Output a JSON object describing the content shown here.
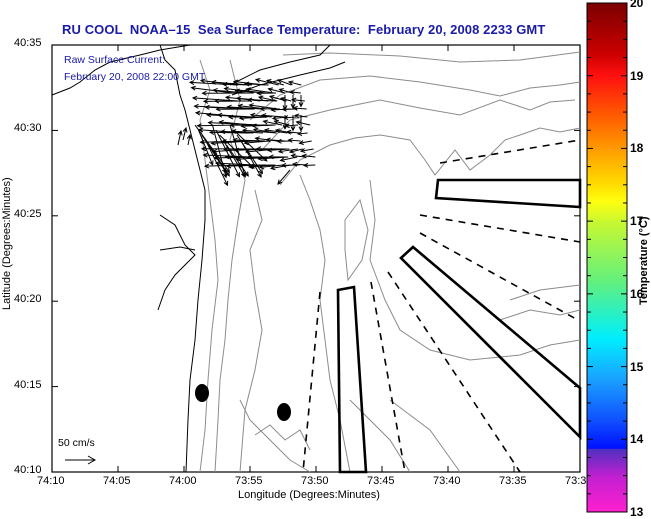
{
  "title": "RU COOL  NOAA–15  Sea Surface Temperature:  February 20, 2008 2233 GMT",
  "annotation": {
    "line1": "Raw Surface Current:",
    "line2": "February 20, 2008 22:00 GMT"
  },
  "scale_vector": {
    "label": "50 cm/s"
  },
  "x_axis": {
    "label": "Longitude (Degrees:Minutes)",
    "ticks": [
      "74:10",
      "74:05",
      "74:00",
      "73:55",
      "73:50",
      "73:45",
      "73:40",
      "73:35",
      "73:3"
    ]
  },
  "y_axis": {
    "label": "Latitude (Degrees:Minutes)",
    "ticks": [
      "40:35",
      "40:30",
      "40:25",
      "40:20",
      "40:15",
      "40:10"
    ]
  },
  "colorbar": {
    "label": "Temperature (°C)",
    "min": 13,
    "max": 20,
    "ticks": [
      "20",
      "19",
      "18",
      "17",
      "16",
      "15",
      "14",
      "13"
    ],
    "colors": {
      "20": "#7a0000",
      "19": "#ff1010",
      "18": "#ff9a00",
      "17.5": "#ffff10",
      "17": "#a8f040",
      "16": "#30f0b0",
      "15.5": "#00f0ff",
      "15": "#2090ff",
      "14.2": "#0010ff",
      "14": "#5030c0",
      "13": "#ff20d0"
    }
  },
  "markers": [
    {
      "name": "station-1",
      "lon": "74:00",
      "lat": "40:14.7"
    },
    {
      "name": "station-2",
      "lon": "73:57.5",
      "lat": "40:13.5"
    }
  ],
  "colors": {
    "title": "#1a1aa8",
    "coast": "#000000",
    "bathymetry": "#8c8c8c",
    "vectors": "#000000"
  }
}
